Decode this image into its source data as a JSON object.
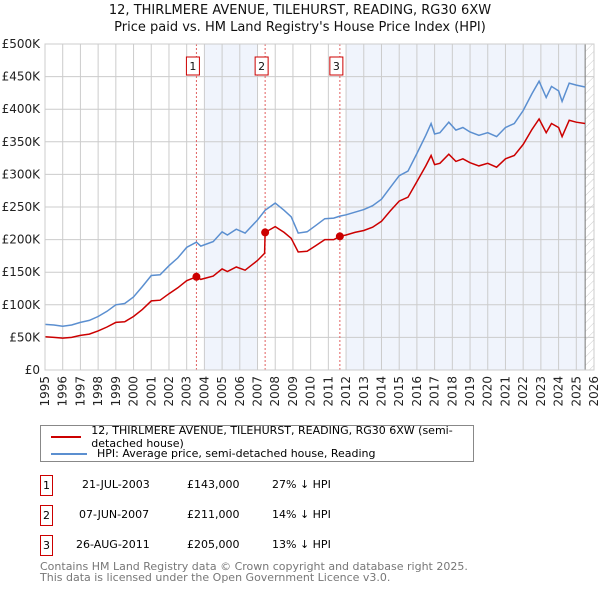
{
  "title": "12, THIRLMERE AVENUE, TILEHURST, READING, RG30 6XW",
  "subtitle": "Price paid vs. HM Land Registry's House Price Index (HPI)",
  "chart_data": {
    "type": "line",
    "xlim": [
      1995,
      2026
    ],
    "ylim": [
      0,
      500000
    ],
    "x_ticks": [
      "1995",
      "1996",
      "1997",
      "1998",
      "1999",
      "2000",
      "2001",
      "2002",
      "2003",
      "2004",
      "2005",
      "2006",
      "2007",
      "2008",
      "2009",
      "2010",
      "2011",
      "2012",
      "2013",
      "2014",
      "2015",
      "2016",
      "2017",
      "2018",
      "2019",
      "2020",
      "2021",
      "2022",
      "2023",
      "2024",
      "2025",
      "2026"
    ],
    "y_ticks": [
      {
        "v": 0,
        "label": "£0"
      },
      {
        "v": 50000,
        "label": "£50K"
      },
      {
        "v": 100000,
        "label": "£100K"
      },
      {
        "v": 150000,
        "label": "£150K"
      },
      {
        "v": 200000,
        "label": "£200K"
      },
      {
        "v": 250000,
        "label": "£250K"
      },
      {
        "v": 300000,
        "label": "£300K"
      },
      {
        "v": 350000,
        "label": "£350K"
      },
      {
        "v": 400000,
        "label": "£400K"
      },
      {
        "v": 450000,
        "label": "£450K"
      },
      {
        "v": 500000,
        "label": "£500K"
      }
    ],
    "shaded_periods": [
      [
        2004,
        2007
      ],
      [
        2012,
        2025.5
      ]
    ],
    "forecast_start": 2025.5,
    "series": [
      {
        "name": "12, THIRLMERE AVENUE, TILEHURST, READING, RG30 6XW (semi-detached house)",
        "color": "#cc0000",
        "x": [
          1995,
          1995.5,
          1996,
          1996.5,
          1997,
          1997.5,
          1998,
          1998.5,
          1999,
          1999.5,
          2000,
          2000.5,
          2001,
          2001.5,
          2002,
          2002.5,
          2003,
          2003.55,
          2003.8,
          2004.5,
          2005,
          2005.3,
          2005.8,
          2006.3,
          2007,
          2007.4,
          2007.43,
          2008,
          2008.5,
          2008.9,
          2009.3,
          2009.8,
          2010.3,
          2010.8,
          2011.3,
          2011.65,
          2012,
          2012.5,
          2013,
          2013.5,
          2014,
          2014.5,
          2015,
          2015.5,
          2016,
          2016.5,
          2016.8,
          2017,
          2017.3,
          2017.8,
          2018.2,
          2018.6,
          2019,
          2019.5,
          2020,
          2020.5,
          2021,
          2021.5,
          2022,
          2022.5,
          2022.9,
          2023.3,
          2023.6,
          2024,
          2024.2,
          2024.6,
          2025,
          2025.5
        ],
        "y": [
          51000,
          50000,
          49000,
          50000,
          53000,
          55000,
          60000,
          66000,
          73000,
          74000,
          82000,
          93000,
          106000,
          107000,
          117000,
          126000,
          137000,
          143000,
          139000,
          144000,
          155000,
          151000,
          158000,
          153000,
          168000,
          179000,
          211000,
          220000,
          211000,
          202000,
          181000,
          182000,
          191000,
          200000,
          200000,
          205000,
          207000,
          211000,
          214000,
          219000,
          228000,
          244000,
          259000,
          265000,
          289000,
          313000,
          329000,
          315000,
          317000,
          331000,
          320000,
          324000,
          318000,
          313000,
          317000,
          311000,
          324000,
          329000,
          346000,
          369000,
          385000,
          364000,
          378000,
          372000,
          358000,
          383000,
          380000,
          378000
        ]
      },
      {
        "name": "HPI: Average price, semi-detached house, Reading",
        "color": "#5b8fd0",
        "x": [
          1995,
          1995.5,
          1996,
          1996.5,
          1997,
          1997.5,
          1998,
          1998.5,
          1999,
          1999.5,
          2000,
          2000.5,
          2001,
          2001.5,
          2002,
          2002.5,
          2003,
          2003.55,
          2003.8,
          2004.5,
          2005,
          2005.3,
          2005.8,
          2006.3,
          2007,
          2007.43,
          2008,
          2008.5,
          2008.9,
          2009.3,
          2009.8,
          2010.3,
          2010.8,
          2011.3,
          2011.65,
          2012,
          2012.5,
          2013,
          2013.5,
          2014,
          2014.5,
          2015,
          2015.5,
          2016,
          2016.5,
          2016.8,
          2017,
          2017.3,
          2017.8,
          2018.2,
          2018.6,
          2019,
          2019.5,
          2020,
          2020.5,
          2021,
          2021.5,
          2022,
          2022.5,
          2022.9,
          2023.3,
          2023.6,
          2024,
          2024.2,
          2024.6,
          2025,
          2025.5
        ],
        "y": [
          70000,
          69000,
          67000,
          69000,
          73000,
          76000,
          82000,
          90000,
          100000,
          102000,
          112000,
          128000,
          145000,
          146000,
          160000,
          172000,
          188000,
          196000,
          190000,
          197000,
          212000,
          207000,
          216000,
          210000,
          230000,
          245000,
          256000,
          245000,
          235000,
          210000,
          212000,
          222000,
          232000,
          233000,
          236000,
          238000,
          242000,
          246000,
          252000,
          262000,
          280000,
          298000,
          305000,
          332000,
          360000,
          378000,
          362000,
          364000,
          380000,
          368000,
          372000,
          365000,
          360000,
          364000,
          358000,
          372000,
          378000,
          398000,
          424000,
          443000,
          418000,
          435000,
          428000,
          412000,
          440000,
          437000,
          434000
        ]
      }
    ],
    "sales": [
      {
        "id": "1",
        "x": 2003.55,
        "price": 143000,
        "date": "21-JUL-2003",
        "price_label": "£143,000",
        "hpi_diff": "27% ↓ HPI"
      },
      {
        "id": "2",
        "x": 2007.43,
        "price": 211000,
        "date": "07-JUN-2007",
        "price_label": "£211,000",
        "hpi_diff": "14% ↓ HPI"
      },
      {
        "id": "3",
        "x": 2011.65,
        "price": 205000,
        "date": "26-AUG-2011",
        "price_label": "£205,000",
        "hpi_diff": "13% ↓ HPI"
      }
    ]
  },
  "legend": {
    "property": "12, THIRLMERE AVENUE, TILEHURST, READING, RG30 6XW (semi-detached house)",
    "hpi": "HPI: Average price, semi-detached house, Reading"
  },
  "footer": {
    "line1": "Contains HM Land Registry data © Crown copyright and database right 2025.",
    "line2": "This data is licensed under the Open Government Licence v3.0."
  }
}
